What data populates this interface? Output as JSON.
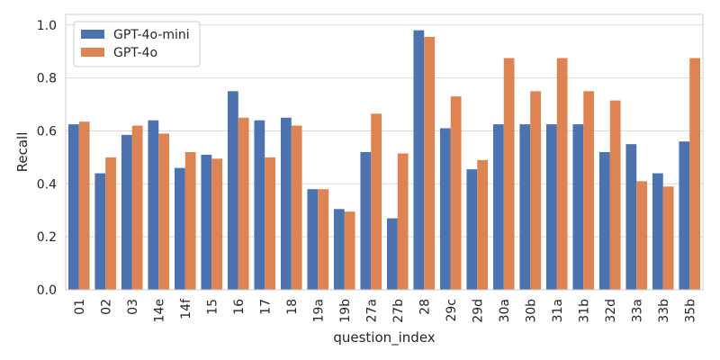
{
  "chart_data": {
    "type": "bar",
    "xlabel": "question_index",
    "ylabel": "Recall",
    "ylim": [
      0,
      1.04
    ],
    "yticks": [
      "0.0",
      "0.2",
      "0.4",
      "0.6",
      "0.8",
      "1.0"
    ],
    "grid": "horizontal",
    "legend_position": "top-left",
    "categories": [
      "01",
      "02",
      "03",
      "14e",
      "14f",
      "15",
      "16",
      "17",
      "18",
      "19a",
      "19b",
      "27a",
      "27b",
      "28",
      "29c",
      "29d",
      "30a",
      "30b",
      "31a",
      "31b",
      "32d",
      "33a",
      "33b",
      "35b"
    ],
    "series": [
      {
        "name": "GPT-4o-mini",
        "color": "#4c72b0",
        "values": [
          0.625,
          0.44,
          0.585,
          0.64,
          0.46,
          0.51,
          0.75,
          0.64,
          0.65,
          0.38,
          0.305,
          0.52,
          0.27,
          0.98,
          0.61,
          0.455,
          0.625,
          0.625,
          0.625,
          0.625,
          0.52,
          0.55,
          0.44,
          0.56
        ]
      },
      {
        "name": "GPT-4o",
        "color": "#dd8452",
        "values": [
          0.635,
          0.5,
          0.62,
          0.59,
          0.52,
          0.495,
          0.65,
          0.5,
          0.62,
          0.38,
          0.295,
          0.665,
          0.515,
          0.955,
          0.73,
          0.49,
          0.875,
          0.75,
          0.875,
          0.75,
          0.715,
          0.41,
          0.39,
          0.875
        ]
      }
    ]
  }
}
